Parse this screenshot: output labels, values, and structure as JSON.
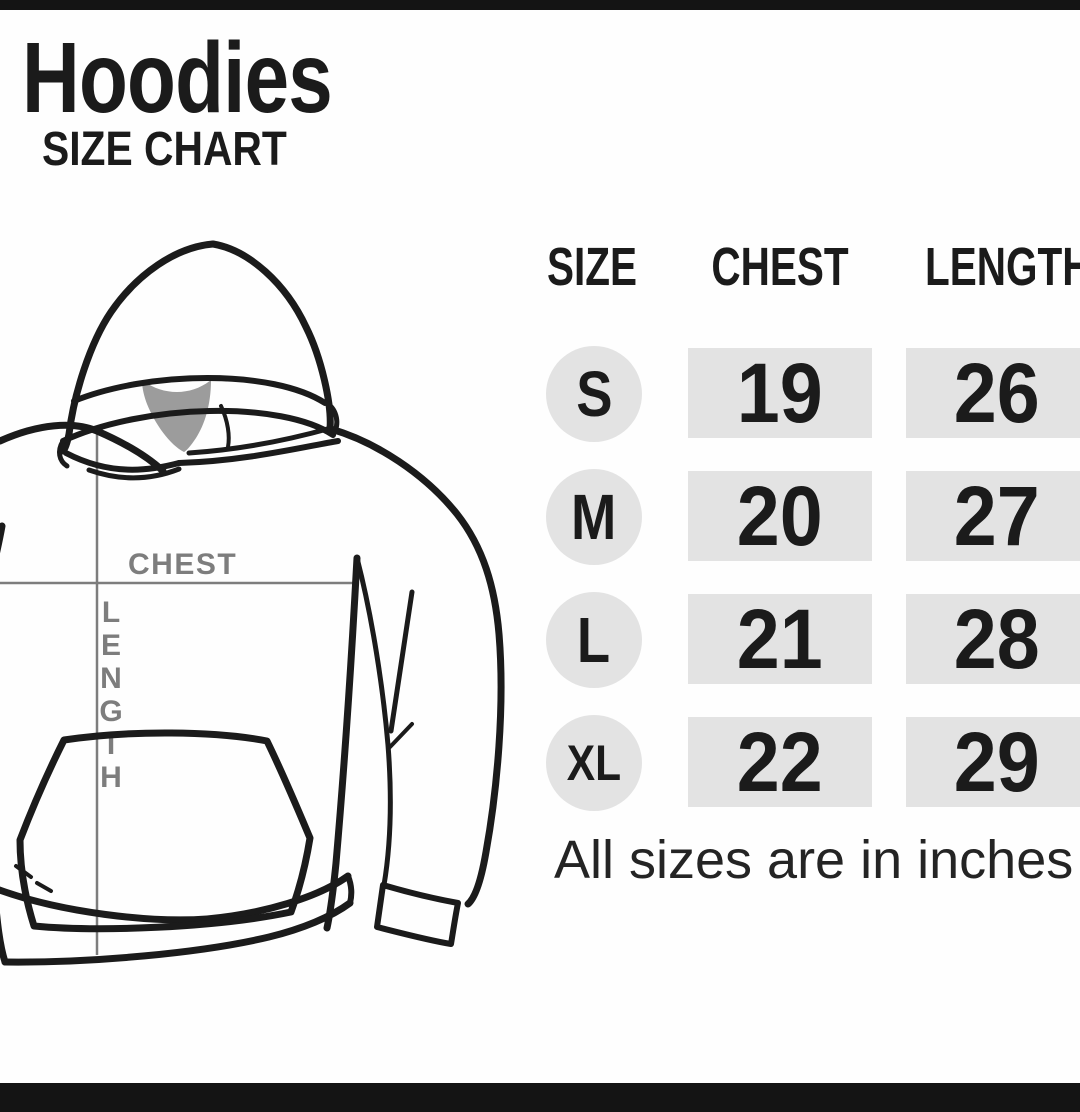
{
  "page": {
    "title": "Hoodies",
    "subtitle": "SIZE CHART",
    "note": "All sizes are in inches"
  },
  "diagram": {
    "garment": "hoodie-line-drawing",
    "chest_label": "CHEST",
    "length_label": "LENGTH"
  },
  "table": {
    "columns": [
      "SIZE",
      "CHEST",
      "LENGTH"
    ],
    "rows": [
      {
        "size": "S",
        "chest": "19",
        "length": "26"
      },
      {
        "size": "M",
        "chest": "20",
        "length": "27"
      },
      {
        "size": "L",
        "chest": "21",
        "length": "28"
      },
      {
        "size": "XL",
        "chest": "22",
        "length": "29"
      }
    ],
    "units": "inches"
  },
  "chart_data": {
    "type": "table",
    "title": "Hoodies SIZE CHART",
    "categories": [
      "S",
      "M",
      "L",
      "XL"
    ],
    "series": [
      {
        "name": "CHEST",
        "values": [
          19,
          20,
          21,
          22
        ]
      },
      {
        "name": "LENGTH",
        "values": [
          26,
          27,
          28,
          29
        ]
      }
    ],
    "note": "All sizes are in inches",
    "units": "inches"
  },
  "colors": {
    "bar": "#141414",
    "ink": "#1b1b1b",
    "cell": "#e3e3e3",
    "measure": "#7d7d7d",
    "neck": "#9c9c9c",
    "background": "#fefefe"
  }
}
